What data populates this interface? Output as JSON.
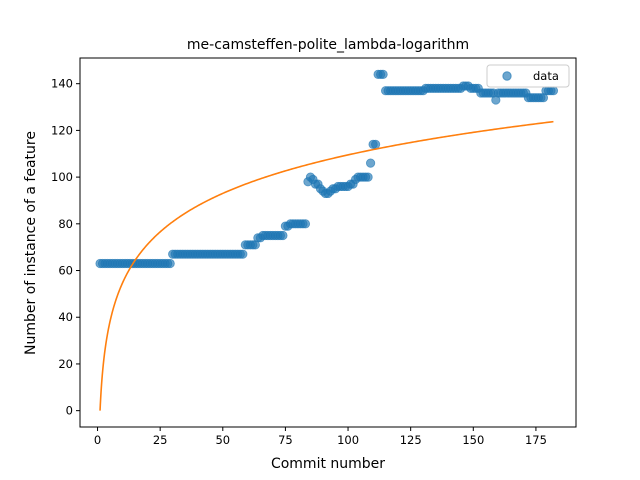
{
  "chart_data": {
    "type": "scatter",
    "title": "me-camsteffen-polite_lambda-logarithm",
    "xlabel": "Commit number",
    "ylabel": "Number of instance of a feature",
    "xlim": [
      -7,
      191
    ],
    "ylim": [
      -7,
      151
    ],
    "xticks": [
      0,
      25,
      50,
      75,
      100,
      125,
      150,
      175
    ],
    "yticks": [
      0,
      20,
      40,
      60,
      80,
      100,
      120,
      140
    ],
    "grid": false,
    "legend": {
      "placement": "top-right",
      "entries": [
        "data"
      ]
    },
    "colors": {
      "data": "#1f77b4",
      "fit": "#ff7f0e"
    },
    "series": [
      {
        "name": "data",
        "kind": "scatter",
        "steps": [
          {
            "x_from": 1,
            "x_to": 29,
            "y": 63
          },
          {
            "x_from": 30,
            "x_to": 58,
            "y": 67
          },
          {
            "x_from": 59,
            "x_to": 63,
            "y": 71
          },
          {
            "x_from": 64,
            "x_to": 65,
            "y": 74
          },
          {
            "x_from": 66,
            "x_to": 74,
            "y": 75
          },
          {
            "x_from": 75,
            "x_to": 76,
            "y": 79
          },
          {
            "x_from": 77,
            "x_to": 83,
            "y": 80
          }
        ],
        "points": [
          [
            84,
            98
          ],
          [
            85,
            100
          ],
          [
            86,
            99
          ],
          [
            87,
            97
          ],
          [
            88,
            97
          ],
          [
            89,
            95
          ],
          [
            90,
            94
          ],
          [
            91,
            93
          ],
          [
            92,
            93
          ],
          [
            93,
            94
          ],
          [
            94,
            95
          ],
          [
            95,
            95
          ],
          [
            96,
            96
          ],
          [
            97,
            96
          ],
          [
            98,
            96
          ],
          [
            99,
            96
          ],
          [
            100,
            96
          ],
          [
            101,
            97
          ],
          [
            102,
            97
          ],
          [
            103,
            99
          ],
          [
            104,
            100
          ],
          [
            105,
            100
          ],
          [
            106,
            100
          ],
          [
            107,
            100
          ],
          [
            108,
            100
          ],
          [
            109,
            106
          ],
          [
            110,
            114
          ],
          [
            111,
            114
          ],
          [
            112,
            144
          ],
          [
            113,
            144
          ],
          [
            114,
            144
          ],
          [
            115,
            137
          ],
          [
            116,
            137
          ],
          [
            117,
            137
          ],
          [
            118,
            137
          ],
          [
            119,
            137
          ],
          [
            120,
            137
          ],
          [
            121,
            137
          ],
          [
            122,
            137
          ],
          [
            123,
            137
          ],
          [
            124,
            137
          ],
          [
            125,
            137
          ],
          [
            126,
            137
          ],
          [
            127,
            137
          ],
          [
            128,
            137
          ],
          [
            129,
            137
          ],
          [
            130,
            137
          ],
          [
            131,
            138
          ],
          [
            132,
            138
          ],
          [
            133,
            138
          ],
          [
            134,
            138
          ],
          [
            135,
            138
          ],
          [
            136,
            138
          ],
          [
            137,
            138
          ],
          [
            138,
            138
          ],
          [
            139,
            138
          ],
          [
            140,
            138
          ],
          [
            141,
            138
          ],
          [
            142,
            138
          ],
          [
            143,
            138
          ],
          [
            144,
            138
          ],
          [
            145,
            138
          ],
          [
            146,
            139
          ],
          [
            147,
            139
          ],
          [
            148,
            139
          ],
          [
            149,
            138
          ],
          [
            150,
            138
          ],
          [
            151,
            138
          ],
          [
            152,
            138
          ],
          [
            153,
            136
          ],
          [
            154,
            136
          ],
          [
            155,
            136
          ],
          [
            156,
            136
          ],
          [
            157,
            136
          ],
          [
            158,
            136
          ],
          [
            159,
            133
          ],
          [
            160,
            136
          ],
          [
            161,
            136
          ],
          [
            162,
            136
          ],
          [
            163,
            136
          ],
          [
            164,
            136
          ],
          [
            165,
            136
          ],
          [
            166,
            136
          ],
          [
            167,
            136
          ],
          [
            168,
            136
          ],
          [
            169,
            136
          ],
          [
            170,
            136
          ],
          [
            171,
            136
          ],
          [
            172,
            134
          ],
          [
            173,
            134
          ],
          [
            174,
            134
          ],
          [
            175,
            134
          ],
          [
            176,
            134
          ],
          [
            177,
            134
          ],
          [
            178,
            134
          ],
          [
            179,
            137
          ],
          [
            180,
            137
          ],
          [
            181,
            137
          ],
          [
            182,
            137
          ]
        ]
      },
      {
        "kind": "line",
        "model": "y = a*ln(x)",
        "a": 23.78,
        "x_range": [
          1,
          182
        ]
      }
    ]
  }
}
